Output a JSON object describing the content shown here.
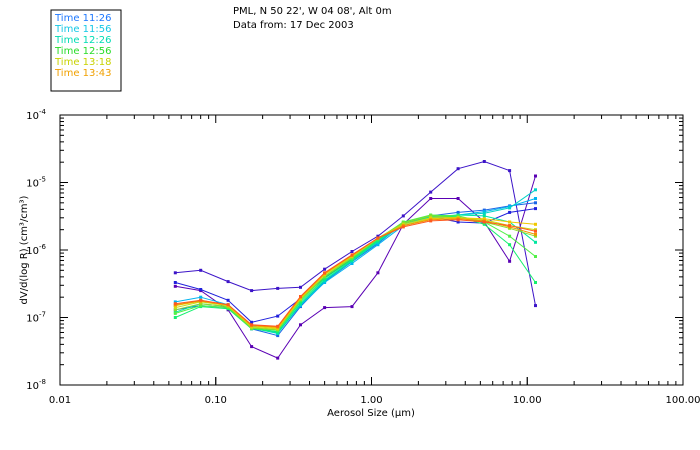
{
  "chart_data": {
    "type": "line",
    "title": "PML, N 50 22', W 04 08', Alt 0m",
    "subtitle": "Data from: 17 Dec 2003",
    "xlabel": "Aerosol Size (μm)",
    "ylabel": "dV/d(log R) (cm³/cm³)",
    "x_scale": "log",
    "y_scale": "log",
    "xlim": [
      0.01,
      100
    ],
    "ylim": [
      1e-08,
      0.0001
    ],
    "x_ticks": [
      {
        "value": 0.01,
        "label": "0.01"
      },
      {
        "value": 0.1,
        "label": "0.10"
      },
      {
        "value": 1,
        "label": "1.00"
      },
      {
        "value": 10,
        "label": "10.00"
      },
      {
        "value": 100,
        "label": "100.00"
      }
    ],
    "y_ticks": [
      {
        "value": 1e-08,
        "mant": "10",
        "exp": "-8"
      },
      {
        "value": 1e-07,
        "mant": "10",
        "exp": "-7"
      },
      {
        "value": 1e-06,
        "mant": "10",
        "exp": "-6"
      },
      {
        "value": 1e-05,
        "mant": "10",
        "exp": "-5"
      },
      {
        "value": 0.0001,
        "mant": "10",
        "exp": "-4"
      }
    ],
    "x": [
      0.055,
      0.08,
      0.12,
      0.17,
      0.25,
      0.35,
      0.5,
      0.75,
      1.1,
      1.6,
      2.4,
      3.6,
      5.3,
      7.7,
      11.3
    ],
    "series": [
      {
        "name": "s01",
        "color": "#5a00b4",
        "values": [
          2.9e-07,
          2.5e-07,
          1.3e-07,
          3.7e-08,
          2.5e-08,
          7.8e-08,
          1.4e-07,
          1.45e-07,
          4.6e-07,
          2.4e-06,
          5.8e-06,
          5.8e-06,
          2.6e-06,
          6.8e-07,
          1.25e-05
        ]
      },
      {
        "name": "s02",
        "color": "#3c14c8",
        "values": [
          4.6e-07,
          5e-07,
          3.4e-07,
          2.5e-07,
          2.7e-07,
          2.8e-07,
          5.2e-07,
          9.5e-07,
          1.6e-06,
          3.2e-06,
          7.2e-06,
          1.6e-05,
          2.05e-05,
          1.5e-05,
          1.5e-07
        ]
      },
      {
        "name": "s03",
        "color": "#2020dc",
        "values": [
          3.3e-07,
          2.6e-07,
          1.8e-07,
          8.5e-08,
          1.05e-07,
          1.9e-07,
          3.9e-07,
          7.4e-07,
          1.4e-06,
          2.5e-06,
          3.1e-06,
          2.6e-06,
          2.5e-06,
          3.6e-06,
          4.1e-06
        ]
      },
      {
        "name": "s04",
        "color": "#1a66e6",
        "values": [
          1.3e-07,
          1.5e-07,
          1.4e-07,
          6.8e-08,
          5.4e-08,
          1.45e-07,
          3.4e-07,
          6.7e-07,
          1.25e-06,
          2.5e-06,
          3.2e-06,
          3.6e-06,
          3.9e-06,
          4.5e-06,
          5e-06
        ]
      },
      {
        "name": "s05",
        "color": "#00b4f0",
        "values": [
          1.7e-07,
          2e-07,
          1.55e-07,
          7.5e-08,
          6e-08,
          1.5e-07,
          3.3e-07,
          6.3e-07,
          1.2e-06,
          2.3e-06,
          2.9e-06,
          3.3e-06,
          3.7e-06,
          4.4e-06,
          5.8e-06
        ]
      },
      {
        "name": "s06",
        "color": "#00d2c8",
        "values": [
          1.5e-07,
          1.8e-07,
          1.5e-07,
          7e-08,
          5.8e-08,
          1.55e-07,
          3.5e-07,
          6.8e-07,
          1.3e-06,
          2.4e-06,
          3e-06,
          3.3e-06,
          3.5e-06,
          4.2e-06,
          7.8e-06
        ]
      },
      {
        "name": "s07",
        "color": "#00e6a0",
        "values": [
          1.2e-07,
          1.6e-07,
          1.45e-07,
          7e-08,
          5.9e-08,
          1.6e-07,
          3.6e-07,
          7e-07,
          1.35e-06,
          2.4e-06,
          3.1e-06,
          3.3e-06,
          3.2e-06,
          2.6e-06,
          1.3e-06
        ]
      },
      {
        "name": "s08",
        "color": "#14f06e",
        "values": [
          1e-07,
          1.45e-07,
          1.35e-07,
          6.8e-08,
          6.2e-08,
          1.7e-07,
          3.8e-07,
          7.2e-07,
          1.4e-06,
          2.5e-06,
          3.2e-06,
          3.1e-06,
          2.4e-06,
          1.2e-06,
          3.3e-07
        ]
      },
      {
        "name": "s09",
        "color": "#50f046",
        "values": [
          1.15e-07,
          1.5e-07,
          1.4e-07,
          6.9e-08,
          6.5e-08,
          1.8e-07,
          4e-07,
          7.5e-07,
          1.45e-06,
          2.6e-06,
          3.3e-06,
          3.2e-06,
          2.6e-06,
          1.6e-06,
          8e-07
        ]
      },
      {
        "name": "s10",
        "color": "#8cdc28",
        "values": [
          1.3e-07,
          1.6e-07,
          1.45e-07,
          7e-08,
          6.6e-08,
          1.85e-07,
          4.1e-07,
          7.8e-07,
          1.5e-06,
          2.5e-06,
          3.2e-06,
          3e-06,
          2.6e-06,
          2.1e-06,
          1.6e-06
        ]
      },
      {
        "name": "s11",
        "color": "#c8dc14",
        "values": [
          1.4e-07,
          1.7e-07,
          1.5e-07,
          7.2e-08,
          6.8e-08,
          1.9e-07,
          4.3e-07,
          8e-07,
          1.5e-06,
          2.4e-06,
          3e-06,
          3e-06,
          2.8e-06,
          2.3e-06,
          2e-06
        ]
      },
      {
        "name": "s12",
        "color": "#f0c800",
        "values": [
          1.5e-07,
          1.75e-07,
          1.5e-07,
          7.5e-08,
          7e-08,
          1.95e-07,
          4.4e-07,
          8.2e-07,
          1.5e-06,
          2.3e-06,
          2.9e-06,
          3e-06,
          2.9e-06,
          2.6e-06,
          2.4e-06
        ]
      },
      {
        "name": "s13",
        "color": "#f09600",
        "values": [
          1.55e-07,
          1.75e-07,
          1.55e-07,
          7.6e-08,
          7.2e-08,
          2e-07,
          4.5e-07,
          8.3e-07,
          1.5e-06,
          2.3e-06,
          2.8e-06,
          2.9e-06,
          2.7e-06,
          2.2e-06,
          1.7e-06
        ]
      },
      {
        "name": "s14",
        "color": "#ff5a1e",
        "values": [
          1.6e-07,
          1.8e-07,
          1.55e-07,
          7.8e-08,
          7.4e-08,
          2.05e-07,
          4.6e-07,
          8.5e-07,
          1.5e-06,
          2.2e-06,
          2.7e-06,
          2.8e-06,
          2.6e-06,
          2.3e-06,
          1.9e-06
        ]
      }
    ]
  },
  "legend": {
    "entries": [
      {
        "label": "Time 11:26",
        "color": "#1e78ff"
      },
      {
        "label": "Time 11:56",
        "color": "#14c8e6"
      },
      {
        "label": "Time 12:26",
        "color": "#00dcb4"
      },
      {
        "label": "Time 12:56",
        "color": "#28dc28"
      },
      {
        "label": "Time 13:18",
        "color": "#c8d200"
      },
      {
        "label": "Time 13:43",
        "color": "#f0a000"
      }
    ]
  }
}
